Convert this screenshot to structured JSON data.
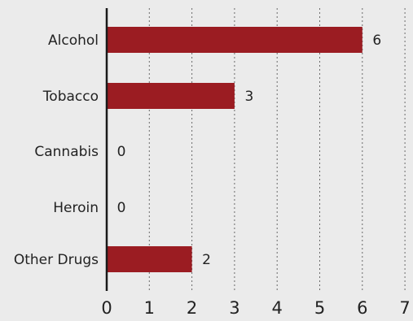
{
  "chart_data": {
    "type": "bar",
    "orientation": "horizontal",
    "categories": [
      "Alcohol",
      "Tobacco",
      "Cannabis",
      "Heroin",
      "Other Drugs"
    ],
    "values": [
      6,
      3,
      0,
      0,
      2
    ],
    "data_labels": [
      "6",
      "3",
      "0",
      "0",
      "2"
    ],
    "x_ticks": [
      "0",
      "1",
      "2",
      "3",
      "4",
      "5",
      "6",
      "7"
    ],
    "xlim": [
      0,
      7
    ],
    "grid": "vertical dotted",
    "bar_color": "#9b1c22",
    "background_color": "#ebebeb"
  }
}
